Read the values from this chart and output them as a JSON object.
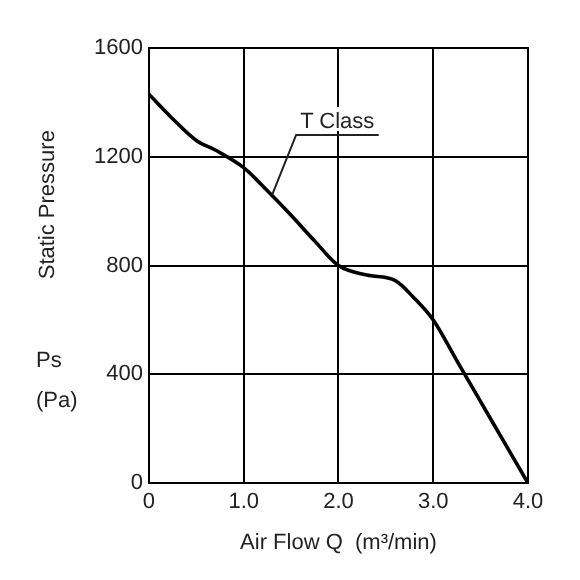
{
  "chart_data": {
    "type": "line",
    "xlabel": "Air Flow Q  (m³/min)",
    "ylabel": "Static Pressure\nPs\n(Pa)",
    "x": [
      0,
      0.25,
      0.5,
      0.7,
      1.0,
      1.25,
      1.5,
      1.75,
      2.0,
      2.3,
      2.6,
      2.8,
      3.0,
      3.25,
      3.5,
      3.75,
      4.0
    ],
    "series": [
      {
        "color": "#000000",
        "values": [
          1430,
          1340,
          1260,
          1225,
          1160,
          1075,
          985,
          890,
          800,
          765,
          745,
          680,
          600,
          450,
          300,
          150,
          0
        ]
      }
    ],
    "xlim": [
      0,
      4
    ],
    "xticks": [
      {
        "value": 0,
        "label": "0"
      },
      {
        "value": 1,
        "label": "1.0"
      },
      {
        "value": 2,
        "label": "2.0"
      },
      {
        "value": 3,
        "label": "3.0"
      },
      {
        "value": 4,
        "label": "4.0"
      }
    ],
    "ylim": [
      0,
      1600
    ],
    "yticks": [
      0,
      400,
      800,
      1200,
      1600
    ],
    "grid": true,
    "legend": false,
    "marker": "none",
    "line_style": "solid",
    "annotations": [
      {
        "text": "T Class",
        "x": 1.3,
        "y": 1060
      }
    ]
  }
}
